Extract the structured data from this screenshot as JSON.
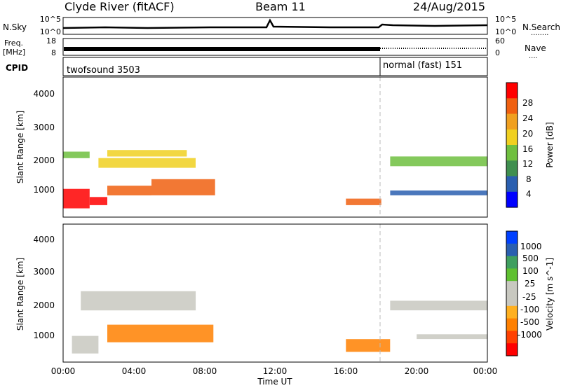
{
  "header": {
    "station": "Clyde River (fitACF)",
    "beam": "Beam 11",
    "date": "24/Aug/2015"
  },
  "noise_panel": {
    "left_label": "N.Sky",
    "right_label": "N.Search",
    "right_legend": "........",
    "left_ticks": [
      "10^5",
      "10^0"
    ],
    "right_ticks": [
      "10^5",
      "10^0"
    ]
  },
  "freq_panel": {
    "left_label_1": "Freq.",
    "left_label_2": "[MHz]",
    "right_label": "Nave",
    "right_legend": "....",
    "left_ticks": [
      "18",
      "8"
    ],
    "right_ticks": [
      "60",
      "0"
    ]
  },
  "cpid_panel": {
    "label": "CPID",
    "segments": [
      {
        "name": "twofsound 3503",
        "start_hour": 0
      },
      {
        "name": "normal (fast) 151",
        "start_hour": 18
      }
    ]
  },
  "power_panel": {
    "ylabel": "Slant Range [km]",
    "yticks": [
      "4000",
      "3000",
      "2000",
      "1000"
    ],
    "colorbar_label": "Power [dB]",
    "colorbar_ticks": [
      "28",
      "24",
      "20",
      "16",
      "12",
      "8",
      "4"
    ]
  },
  "velocity_panel": {
    "ylabel": "Slant Range [km]",
    "yticks": [
      "4000",
      "3000",
      "2000",
      "1000"
    ],
    "colorbar_label": "Velocity [m s^-1]",
    "colorbar_ticks": [
      "1000",
      "500",
      "100",
      "25",
      "-25",
      "-100",
      "-500",
      "-1000"
    ]
  },
  "xaxis": {
    "label": "Time UT",
    "ticks": [
      "00:00",
      "04:00",
      "08:00",
      "12:00",
      "16:00",
      "20:00",
      "00:00"
    ]
  },
  "colors": {
    "power_scale": [
      "#0000ff",
      "#2a5fb0",
      "#3f8f4f",
      "#6fbf3f",
      "#f0d020",
      "#f0a020",
      "#f06010",
      "#ff0000"
    ],
    "velocity_scale": [
      "#ff0000",
      "#ff4000",
      "#ff8000",
      "#ffb020",
      "#c8c8c0",
      "#c8c8c0",
      "#5fc030",
      "#3f9f5f",
      "#2a5fb0",
      "#0040ff"
    ]
  },
  "chart_data": {
    "type": "heatmap",
    "x_unit": "hours UT",
    "y_unit": "km",
    "xlim": [
      0,
      24
    ],
    "ylim": [
      180,
      4500
    ],
    "power_bands": [
      {
        "t0": 0.0,
        "t1": 1.5,
        "r0": 450,
        "r1": 1050,
        "level": 7
      },
      {
        "t0": 1.5,
        "t1": 2.5,
        "r0": 550,
        "r1": 800,
        "level": 7
      },
      {
        "t0": 2.5,
        "t1": 5.0,
        "r0": 850,
        "r1": 1150,
        "level": 6
      },
      {
        "t0": 5.0,
        "t1": 8.6,
        "r0": 850,
        "r1": 1350,
        "level": 6
      },
      {
        "t0": 2.0,
        "t1": 7.5,
        "r0": 1700,
        "r1": 2000,
        "level": 4
      },
      {
        "t0": 2.5,
        "t1": 7.0,
        "r0": 2050,
        "r1": 2250,
        "level": 4
      },
      {
        "t0": 0.0,
        "t1": 1.5,
        "r0": 2000,
        "r1": 2200,
        "level": 3
      },
      {
        "t0": 16.0,
        "t1": 18.0,
        "r0": 550,
        "r1": 750,
        "level": 6
      },
      {
        "t0": 18.5,
        "t1": 24.0,
        "r0": 1750,
        "r1": 2050,
        "level": 3
      },
      {
        "t0": 18.5,
        "t1": 24.0,
        "r0": 850,
        "r1": 1000,
        "level": 1
      }
    ],
    "velocity_bands": [
      {
        "t0": 0.5,
        "t1": 2.0,
        "r0": 450,
        "r1": 1000,
        "level": 4
      },
      {
        "t0": 2.5,
        "t1": 8.5,
        "r0": 800,
        "r1": 1350,
        "level": 2
      },
      {
        "t0": 1.0,
        "t1": 7.5,
        "r0": 1800,
        "r1": 2400,
        "level": 4
      },
      {
        "t0": 16.0,
        "t1": 18.5,
        "r0": 500,
        "r1": 900,
        "level": 2
      },
      {
        "t0": 18.5,
        "t1": 24.0,
        "r0": 1800,
        "r1": 2100,
        "level": 4
      },
      {
        "t0": 20.0,
        "t1": 24.0,
        "r0": 900,
        "r1": 1050,
        "level": 4
      }
    ]
  }
}
